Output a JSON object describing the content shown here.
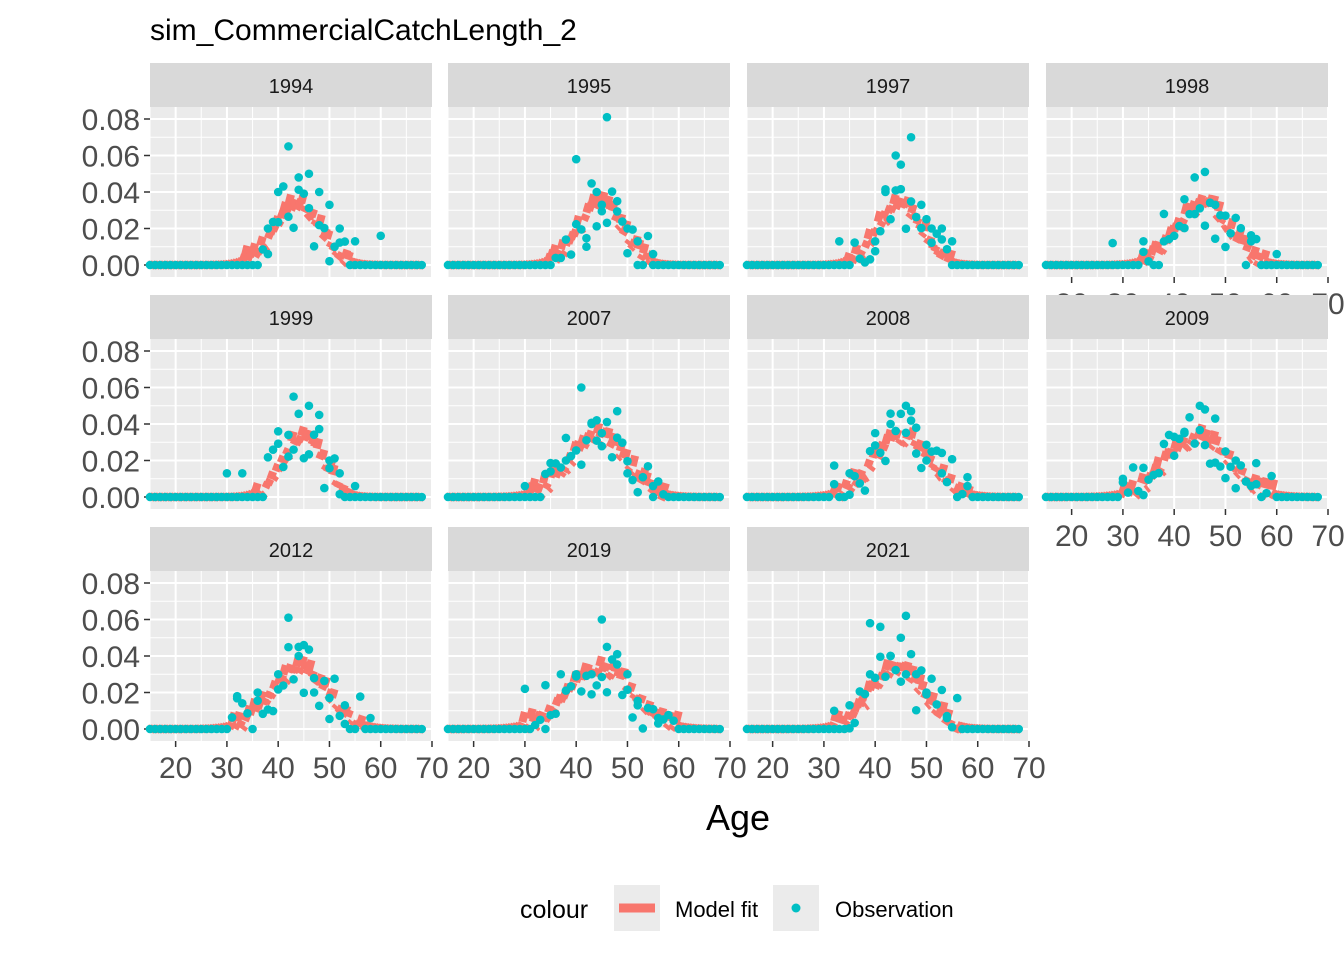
{
  "chart_data": {
    "type": "scatter",
    "title": "sim_CommercialCatchLength_2",
    "xlabel": "Age",
    "ylabel": "",
    "xlim": [
      15,
      70
    ],
    "ylim": [
      0,
      0.08
    ],
    "x_ticks": [
      20,
      30,
      40,
      50,
      60,
      70
    ],
    "y_ticks": [
      0.0,
      0.02,
      0.04,
      0.06,
      0.08
    ],
    "y_tick_labels": [
      "0.00",
      "0.02",
      "0.04",
      "0.06",
      "0.08"
    ],
    "grid": true,
    "facet_layout": "wrap 4 columns",
    "legend": {
      "position": "bottom",
      "title": "colour",
      "entries": [
        {
          "name": "Model fit",
          "kind": "line",
          "color": "#F8766D"
        },
        {
          "name": "Observation",
          "kind": "point",
          "color": "#00BFC4"
        }
      ]
    },
    "colors": {
      "model_fit": "#F8766D",
      "observation": "#00BFC4",
      "panel_bg": "#EBEBEB",
      "strip_bg": "#D9D9D9",
      "grid": "#FFFFFF"
    },
    "panels": [
      {
        "label": "1994",
        "x_axis": false,
        "y_axis": true,
        "peak": 43.5,
        "sd": 4.6,
        "obs_sample": [
          [
            40,
            0.04
          ],
          [
            42,
            0.065
          ],
          [
            44,
            0.048
          ],
          [
            46,
            0.05
          ],
          [
            48,
            0.04
          ],
          [
            50,
            0.033
          ],
          [
            38,
            0.02
          ],
          [
            52,
            0.02
          ],
          [
            55,
            0.013
          ],
          [
            60,
            0.016
          ]
        ]
      },
      {
        "label": "1995",
        "x_axis": false,
        "y_axis": false,
        "peak": 44.5,
        "sd": 4.4,
        "obs_sample": [
          [
            40,
            0.058
          ],
          [
            44,
            0.04
          ],
          [
            45,
            0.033
          ],
          [
            46,
            0.081
          ],
          [
            48,
            0.035
          ],
          [
            50,
            0.02
          ],
          [
            42,
            0.01
          ],
          [
            52,
            0.013
          ],
          [
            55,
            0.006
          ]
        ]
      },
      {
        "label": "1997",
        "x_axis": false,
        "y_axis": false,
        "peak": 44.5,
        "sd": 4.4,
        "obs_sample": [
          [
            42,
            0.04
          ],
          [
            44,
            0.06
          ],
          [
            45,
            0.055
          ],
          [
            47,
            0.07
          ],
          [
            49,
            0.033
          ],
          [
            51,
            0.02
          ],
          [
            40,
            0.013
          ],
          [
            33,
            0.013
          ],
          [
            53,
            0.02
          ],
          [
            55,
            0.013
          ]
        ]
      },
      {
        "label": "1998",
        "x_axis": true,
        "y_axis": false,
        "peak": 45.5,
        "sd": 5.2,
        "obs_sample": [
          [
            42,
            0.036
          ],
          [
            44,
            0.048
          ],
          [
            46,
            0.051
          ],
          [
            48,
            0.033
          ],
          [
            50,
            0.027
          ],
          [
            38,
            0.028
          ],
          [
            34,
            0.013
          ],
          [
            28,
            0.012
          ],
          [
            55,
            0.013
          ],
          [
            60,
            0.006
          ]
        ]
      },
      {
        "label": "1999",
        "x_axis": false,
        "y_axis": true,
        "peak": 44.5,
        "sd": 4.0,
        "obs_sample": [
          [
            40,
            0.036
          ],
          [
            42,
            0.034
          ],
          [
            43,
            0.055
          ],
          [
            46,
            0.05
          ],
          [
            48,
            0.045
          ],
          [
            50,
            0.02
          ],
          [
            30,
            0.013
          ],
          [
            33,
            0.013
          ],
          [
            52,
            0.013
          ],
          [
            55,
            0.006
          ]
        ]
      },
      {
        "label": "2007",
        "x_axis": false,
        "y_axis": false,
        "peak": 44.0,
        "sd": 5.6,
        "obs_sample": [
          [
            41,
            0.06
          ],
          [
            43,
            0.04
          ],
          [
            44,
            0.042
          ],
          [
            45,
            0.035
          ],
          [
            48,
            0.047
          ],
          [
            30,
            0.006
          ],
          [
            35,
            0.014
          ],
          [
            38,
            0.02
          ],
          [
            50,
            0.013
          ],
          [
            55,
            0.006
          ]
        ]
      },
      {
        "label": "2008",
        "x_axis": false,
        "y_axis": false,
        "peak": 45.0,
        "sd": 5.6,
        "obs_sample": [
          [
            40,
            0.035
          ],
          [
            43,
            0.04
          ],
          [
            46,
            0.05
          ],
          [
            47,
            0.047
          ],
          [
            48,
            0.038
          ],
          [
            50,
            0.02
          ],
          [
            35,
            0.013
          ],
          [
            32,
            0.007
          ],
          [
            53,
            0.013
          ],
          [
            58,
            0.006
          ]
        ]
      },
      {
        "label": "2009",
        "x_axis": true,
        "y_axis": false,
        "peak": 44.5,
        "sd": 6.2,
        "obs_sample": [
          [
            40,
            0.033
          ],
          [
            42,
            0.035
          ],
          [
            45,
            0.05
          ],
          [
            46,
            0.048
          ],
          [
            48,
            0.043
          ],
          [
            50,
            0.025
          ],
          [
            34,
            0.016
          ],
          [
            30,
            0.01
          ],
          [
            52,
            0.02
          ],
          [
            56,
            0.007
          ]
        ]
      },
      {
        "label": "2012",
        "x_axis": true,
        "y_axis": true,
        "peak": 44.0,
        "sd": 5.6,
        "obs_sample": [
          [
            40,
            0.03
          ],
          [
            42,
            0.061
          ],
          [
            44,
            0.04
          ],
          [
            45,
            0.046
          ],
          [
            47,
            0.02
          ],
          [
            50,
            0.017
          ],
          [
            32,
            0.018
          ],
          [
            36,
            0.02
          ],
          [
            53,
            0.013
          ],
          [
            58,
            0.006
          ]
        ]
      },
      {
        "label": "2019",
        "x_axis": true,
        "y_axis": false,
        "peak": 44.5,
        "sd": 6.4,
        "obs_sample": [
          [
            40,
            0.03
          ],
          [
            43,
            0.03
          ],
          [
            45,
            0.06
          ],
          [
            46,
            0.045
          ],
          [
            48,
            0.041
          ],
          [
            50,
            0.03
          ],
          [
            30,
            0.022
          ],
          [
            34,
            0.024
          ],
          [
            52,
            0.013
          ],
          [
            56,
            0.006
          ]
        ]
      },
      {
        "label": "2021",
        "x_axis": true,
        "y_axis": false,
        "peak": 44.0,
        "sd": 5.2,
        "obs_sample": [
          [
            39,
            0.058
          ],
          [
            41,
            0.056
          ],
          [
            43,
            0.04
          ],
          [
            45,
            0.05
          ],
          [
            46,
            0.062
          ],
          [
            48,
            0.03
          ],
          [
            35,
            0.013
          ],
          [
            32,
            0.01
          ],
          [
            50,
            0.02
          ],
          [
            54,
            0.006
          ]
        ]
      }
    ]
  }
}
